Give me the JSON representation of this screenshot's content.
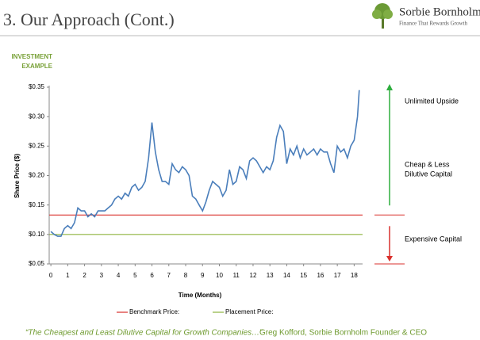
{
  "header": {
    "title": "3. Our Approach (Cont.)",
    "logo_name": "Sorbie Bornholm",
    "logo_tagline": "Finance That Rewards Growth"
  },
  "section_label": [
    "INVESTMENT",
    "EXAMPLE"
  ],
  "chart_data": {
    "type": "line",
    "y_label": "Share Price ($)",
    "x_label": "Time (Months)",
    "x": [
      0,
      0.2,
      0.4,
      0.6,
      0.8,
      1.0,
      1.2,
      1.4,
      1.6,
      1.8,
      2.0,
      2.2,
      2.4,
      2.6,
      2.8,
      3.0,
      3.2,
      3.4,
      3.6,
      3.8,
      4.0,
      4.2,
      4.4,
      4.6,
      4.8,
      5.0,
      5.2,
      5.4,
      5.6,
      5.8,
      6.0,
      6.2,
      6.4,
      6.6,
      6.8,
      7.0,
      7.2,
      7.4,
      7.6,
      7.8,
      8.0,
      8.2,
      8.4,
      8.6,
      8.8,
      9.0,
      9.2,
      9.4,
      9.6,
      9.8,
      10.0,
      10.2,
      10.4,
      10.6,
      10.8,
      11.0,
      11.2,
      11.4,
      11.6,
      11.8,
      12.0,
      12.2,
      12.4,
      12.6,
      12.8,
      13.0,
      13.2,
      13.4,
      13.6,
      13.8,
      14.0,
      14.2,
      14.4,
      14.6,
      14.8,
      15.0,
      15.2,
      15.4,
      15.6,
      15.8,
      16.0,
      16.2,
      16.4,
      16.6,
      16.8,
      17.0,
      17.2,
      17.4,
      17.6,
      17.8,
      18.0,
      18.2,
      18.3
    ],
    "series": [
      {
        "name": "Share Price",
        "color": "#4a7ebb",
        "values": [
          0.105,
          0.1,
          0.097,
          0.097,
          0.11,
          0.115,
          0.11,
          0.12,
          0.145,
          0.14,
          0.14,
          0.13,
          0.135,
          0.13,
          0.14,
          0.14,
          0.14,
          0.145,
          0.15,
          0.16,
          0.165,
          0.16,
          0.17,
          0.165,
          0.18,
          0.185,
          0.175,
          0.18,
          0.19,
          0.23,
          0.29,
          0.24,
          0.21,
          0.19,
          0.19,
          0.185,
          0.22,
          0.21,
          0.205,
          0.215,
          0.21,
          0.2,
          0.165,
          0.16,
          0.15,
          0.14,
          0.155,
          0.175,
          0.19,
          0.185,
          0.18,
          0.165,
          0.175,
          0.21,
          0.185,
          0.19,
          0.215,
          0.21,
          0.195,
          0.225,
          0.23,
          0.225,
          0.215,
          0.205,
          0.215,
          0.21,
          0.225,
          0.265,
          0.285,
          0.275,
          0.22,
          0.245,
          0.235,
          0.25,
          0.23,
          0.245,
          0.235,
          0.24,
          0.245,
          0.235,
          0.245,
          0.24,
          0.24,
          0.22,
          0.205,
          0.25,
          0.24,
          0.245,
          0.23,
          0.25,
          0.26,
          0.3,
          0.345
        ]
      }
    ],
    "reference_lines": [
      {
        "name": "Benchmark Price:",
        "value": 0.133,
        "color": "#d9302c"
      },
      {
        "name": "Placement Price:",
        "value": 0.1,
        "color": "#8db43e"
      }
    ],
    "xlim": [
      -0.1,
      18.5
    ],
    "ylim": [
      0.05,
      0.35
    ],
    "xticks": [
      0,
      1,
      2,
      3,
      4,
      5,
      6,
      7,
      8,
      9,
      10,
      11,
      12,
      13,
      14,
      15,
      16,
      17,
      18
    ],
    "yticks": [
      {
        "value": 0.05,
        "label": "$0.05"
      },
      {
        "value": 0.1,
        "label": "$0.10"
      },
      {
        "value": 0.15,
        "label": "$0.15"
      },
      {
        "value": 0.2,
        "label": "$0.20"
      },
      {
        "value": 0.25,
        "label": "$0.25"
      },
      {
        "value": 0.3,
        "label": "$0.30"
      },
      {
        "value": 0.35,
        "label": "$0.35"
      }
    ],
    "grid": false,
    "annotations": [
      "Unlimited Upside",
      "Cheap & Less",
      "Dilutive Capital",
      "Expensive Capital"
    ]
  },
  "quote": {
    "text": "“The Cheapest and Least Dilutive Capital for Growth Companies…”",
    "author": "Greg Kofford, Sorbie Bornholm Founder & CEO"
  }
}
